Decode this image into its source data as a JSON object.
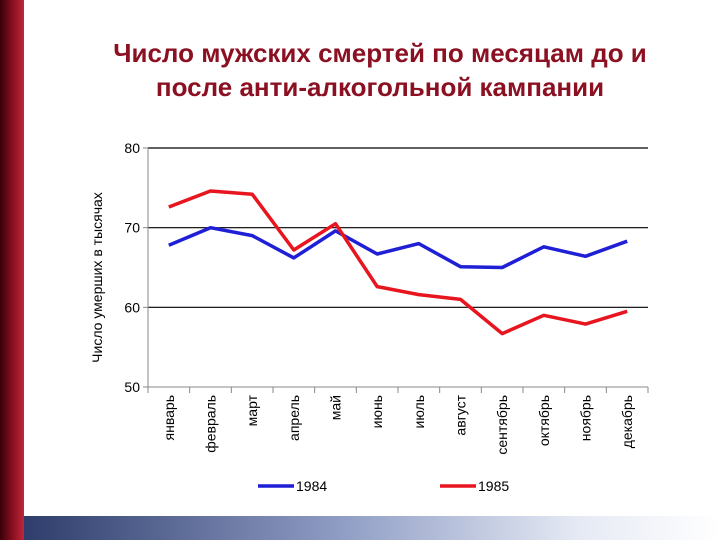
{
  "slide": {
    "title": "Число мужских смертей по месяцам до и\nпосле анти-алкогольной кампании"
  },
  "chart_data": {
    "type": "line",
    "title": "Число мужских смертей по месяцам до и после анти-алкогольной кампании",
    "ylabel": "Число умерших в тысячах",
    "xlabel": "",
    "ylim": [
      50,
      80
    ],
    "yticks": [
      50,
      60,
      70,
      80
    ],
    "grid": "horizontal",
    "legend_position": "bottom",
    "categories": [
      "январь",
      "февраль",
      "март",
      "апрель",
      "май",
      "июнь",
      "июль",
      "август",
      "сентябрь",
      "октябрь",
      "ноябрь",
      "декабрь"
    ],
    "series": [
      {
        "name": "1984",
        "color": "#1f1fd6",
        "values": [
          67.8,
          70.0,
          69.0,
          66.2,
          69.6,
          66.7,
          68.0,
          65.1,
          65.0,
          67.6,
          66.4,
          68.3
        ]
      },
      {
        "name": "1985",
        "color": "#e8141e",
        "values": [
          72.6,
          74.6,
          74.2,
          67.2,
          70.5,
          62.6,
          61.6,
          61.0,
          56.7,
          59.0,
          57.9,
          59.5
        ]
      }
    ]
  }
}
